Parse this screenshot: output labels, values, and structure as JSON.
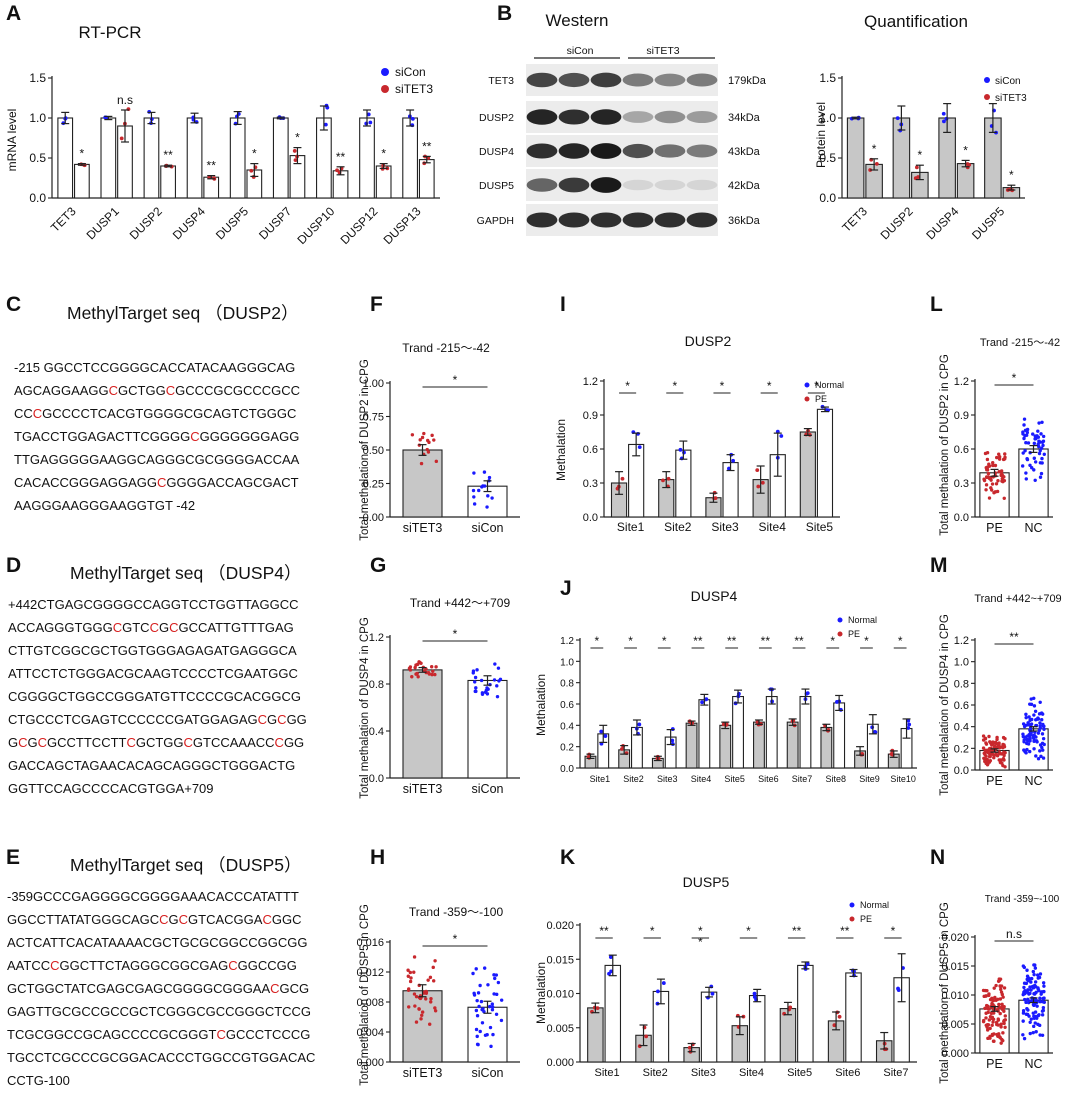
{
  "panel_letters": [
    "A",
    "B",
    "C",
    "D",
    "E",
    "F",
    "G",
    "H",
    "I",
    "J",
    "K",
    "L",
    "M",
    "N"
  ],
  "blot": {
    "title": "Western",
    "group_labels": [
      "siCon",
      "siTET3"
    ],
    "rows": [
      {
        "protein": "TET3",
        "size": "179kDa",
        "con": [
          0.75,
          0.7,
          0.78
        ],
        "kd": [
          0.5,
          0.45,
          0.5
        ]
      },
      {
        "protein": "DUSP2",
        "size": "34kDa",
        "con": [
          0.9,
          0.85,
          0.9
        ],
        "kd": [
          0.3,
          0.4,
          0.35
        ]
      },
      {
        "protein": "DUSP4",
        "size": "43kDa",
        "con": [
          0.85,
          0.9,
          0.95
        ],
        "kd": [
          0.7,
          0.55,
          0.5
        ]
      },
      {
        "protein": "DUSP5",
        "size": "42kDa",
        "con": [
          0.6,
          0.8,
          0.95
        ],
        "kd": [
          0.08,
          0.08,
          0.08
        ]
      },
      {
        "protein": "GAPDH",
        "size": "36kDa",
        "con": [
          0.85,
          0.85,
          0.85
        ],
        "kd": [
          0.85,
          0.85,
          0.85
        ]
      }
    ]
  },
  "sequences": [
    {
      "title": "MethylTarget seq （DUSP2）",
      "lines": [
        "-215 GGCCTCCGGGGCACCATACAAGGGCAG",
        "AGCAGGAAGG[C]GCTGG[C]GCCCGCGCCCGCC",
        "CC[C]GCCCCTCACGTGGGGCGCAGTCTGGGC",
        "TGACCTGGAGACTTCGGGG[C]GGGGGGGAGG",
        "TTGAGGGGGAAGGCAGGGCGCGGGGACCAA",
        "CACACCGGGAGGAGG[C]GGGGACCAGCGACT",
        "AAGGGAAGGGAAGGTGT -42"
      ]
    },
    {
      "title": "MethylTarget seq （DUSP4）",
      "lines": [
        "+442CTGAGCGGGGCCAGGTCCTGGTTAGGCC",
        "ACCAGGGTGGG[C]GTC[C]G[C]GCCATTGTTTGAG",
        "CTTGTCGGCGCTGGTGGGAGAGATGAGGGCA",
        "ATTCCTCTGGGACGCAAGTCCCCTCGAATGGC",
        "CGGGGCTGGCCGGGATGTTCCCCGCACGGCG",
        "CTGCCCTCGAGTCCCCCCGATGGAGAG[C]G[C]GG",
        "G[C]G[C]GCCTTCCTT[C]GCTGG[C]GTCCAAACC[C]GG",
        "GACCAGCTAGAACACAGCAGGGCTGGGACTG",
        "GGTTCCAGCCCCACGTGGA+709"
      ]
    },
    {
      "title": "MethylTarget seq （DUSP5）",
      "lines": [
        "-359GCCCGAGGGGCGGGGAAACACCCATATTT",
        "GGCCTTATATGGGCAGC[C]G[C]GTCACGGA[C]GGC",
        "ACTCATTCACATAAAACGCTGCGCGGCCGGCGG",
        "AATCC[C]GGCTTCTAGGGCGGCGAG[C]GGCCGG",
        "GCTGGCTATCGAGCGAGCGGGGCGGGAA[C]GCG",
        "GAGTTGCGCCGCCGCTCGGGCGCCGGGCTCCG",
        "TCGCGGCCGCAGCCCCGCGGGT[C]GCCCTCCCG",
        "TGCCTCGCCCGCGGACACCCTGGCCGTGGACAC",
        "CCTG-100"
      ]
    }
  ],
  "colors": {
    "con": "#1a1aff",
    "kd": "#c8282d",
    "bar_gray": "#c7c7c7",
    "bar_white": "#ffffff",
    "seq_red": "#d61f1f"
  },
  "chart_data": [
    {
      "panel": "A",
      "type": "bar",
      "title": "RT-PCR",
      "ylabel": "mRNA level",
      "ylim": [
        0,
        1.5
      ],
      "yticks": [
        "0.0",
        "0.5",
        "1.0",
        "1.5"
      ],
      "categories": [
        "TET3",
        "DUSP1",
        "DUSP2",
        "DUSP4",
        "DUSP5",
        "DUSP7",
        "DUSP10",
        "DUSP12",
        "DUSP13"
      ],
      "series": [
        {
          "name": "siCon",
          "values": [
            1.0,
            1.0,
            1.0,
            1.0,
            1.0,
            1.0,
            1.0,
            1.0,
            1.0
          ]
        },
        {
          "name": "siTET3",
          "values": [
            0.42,
            0.9,
            0.4,
            0.26,
            0.35,
            0.53,
            0.34,
            0.4,
            0.48
          ]
        }
      ],
      "errors": [
        [
          0.07,
          0.02,
          0.07,
          0.06,
          0.08,
          0.01,
          0.15,
          0.1,
          0.1
        ],
        [
          0.01,
          0.2,
          0.01,
          0.02,
          0.08,
          0.1,
          0.05,
          0.03,
          0.04
        ]
      ],
      "sig": [
        "*",
        "n.s",
        "**",
        "**",
        "*",
        "*",
        "**",
        "*",
        "**"
      ],
      "legend": "top-right"
    },
    {
      "panel": "B",
      "type": "bar",
      "title": "Quantification",
      "ylabel": "Protein level",
      "ylim": [
        0,
        1.5
      ],
      "yticks": [
        "0.0",
        "0.5",
        "1.0",
        "1.5"
      ],
      "categories": [
        "TET3",
        "DUSP2",
        "DUSP4",
        "DUSP5"
      ],
      "series": [
        {
          "name": "siCon",
          "values": [
            1.0,
            1.0,
            1.0,
            1.0
          ]
        },
        {
          "name": "siTET3",
          "values": [
            0.42,
            0.32,
            0.43,
            0.13
          ]
        }
      ],
      "errors": [
        [
          0.01,
          0.15,
          0.18,
          0.18
        ],
        [
          0.07,
          0.09,
          0.04,
          0.03
        ]
      ],
      "sig": [
        "*",
        "*",
        "*",
        "*"
      ],
      "legend": "top-right"
    },
    {
      "panel": "F",
      "type": "bar",
      "subtitle": "Trand  -215～-42",
      "ylabel": "Total methalation of  DUSP2 in CPG",
      "ylim": [
        0,
        1.0
      ],
      "yticks": [
        "0.00",
        "0.25",
        "0.50",
        "0.75",
        "1.00"
      ],
      "categories": [
        "siTET3",
        "siCon"
      ],
      "values": [
        0.5,
        0.23
      ],
      "errors": [
        0.04,
        0.04
      ],
      "sig": "*"
    },
    {
      "panel": "G",
      "type": "bar",
      "subtitle": "Trand  +442～+709",
      "ylabel": "Total methalation of  DUSP4 in CPG",
      "ylim": [
        0,
        1.2
      ],
      "yticks": [
        "0.0",
        "0.4",
        "0.8",
        "1.2"
      ],
      "categories": [
        "siTET3",
        "siCon"
      ],
      "values": [
        0.92,
        0.83
      ],
      "errors": [
        0.02,
        0.04
      ],
      "sig": "*"
    },
    {
      "panel": "H",
      "type": "bar",
      "subtitle": "Trand  -359～-100",
      "ylabel": "Total methalation of  DUSP5 in CPG",
      "ylim": [
        0,
        0.016
      ],
      "yticks": [
        "0.000",
        "0.004",
        "0.008",
        "0.012",
        "0.016"
      ],
      "categories": [
        "siTET3",
        "siCon"
      ],
      "values": [
        0.0095,
        0.0073
      ],
      "errors": [
        0.0008,
        0.0008
      ],
      "sig": "*"
    },
    {
      "panel": "I",
      "type": "bar",
      "title": "DUSP2",
      "ylabel": "Methalation",
      "ylim": [
        0,
        1.2
      ],
      "yticks": [
        "0.0",
        "0.3",
        "0.6",
        "0.9",
        "1.2"
      ],
      "categories": [
        "Site1",
        "Site2",
        "Site3",
        "Site4",
        "Site5"
      ],
      "series": [
        {
          "name": "PE",
          "values": [
            0.3,
            0.33,
            0.17,
            0.33,
            0.75
          ]
        },
        {
          "name": "Normal",
          "values": [
            0.64,
            0.59,
            0.48,
            0.55,
            0.95
          ]
        }
      ],
      "errors": [
        [
          0.1,
          0.07,
          0.04,
          0.12,
          0.03
        ],
        [
          0.1,
          0.08,
          0.07,
          0.19,
          0.02
        ]
      ],
      "sig": [
        "*",
        "*",
        "*",
        "*",
        "*"
      ],
      "legend": "top-right"
    },
    {
      "panel": "J",
      "type": "bar",
      "title": "DUSP4",
      "ylabel": "Methalation",
      "ylim": [
        0,
        1.2
      ],
      "yticks": [
        "0.0",
        "0.2",
        "0.4",
        "0.6",
        "0.8",
        "1.0",
        "1.2"
      ],
      "categories": [
        "Site1",
        "Site2",
        "Site3",
        "Site4",
        "Site5",
        "Site6",
        "Site7",
        "Site8",
        "Site9",
        "Site10"
      ],
      "series": [
        {
          "name": "PE",
          "values": [
            0.11,
            0.17,
            0.09,
            0.42,
            0.4,
            0.43,
            0.43,
            0.38,
            0.16,
            0.13
          ]
        },
        {
          "name": "Normal",
          "values": [
            0.32,
            0.38,
            0.29,
            0.64,
            0.67,
            0.67,
            0.67,
            0.61,
            0.41,
            0.37
          ]
        }
      ],
      "errors": [
        [
          0.02,
          0.04,
          0.02,
          0.02,
          0.03,
          0.02,
          0.03,
          0.03,
          0.04,
          0.03
        ],
        [
          0.08,
          0.07,
          0.07,
          0.05,
          0.06,
          0.07,
          0.07,
          0.07,
          0.09,
          0.09
        ]
      ],
      "sig": [
        "*",
        "*",
        "*",
        "**",
        "**",
        "**",
        "**",
        "*",
        "*",
        "*"
      ],
      "legend": "top-right"
    },
    {
      "panel": "K",
      "type": "bar",
      "title": "DUSP5",
      "ylabel": "Methalation",
      "ylim": [
        0,
        0.02
      ],
      "yticks": [
        "0.000",
        "0.005",
        "0.010",
        "0.015",
        "0.020"
      ],
      "categories": [
        "Site1",
        "Site2",
        "Site3",
        "Site4",
        "Site5",
        "Site6",
        "Site7"
      ],
      "series": [
        {
          "name": "PE",
          "values": [
            0.0079,
            0.0039,
            0.0021,
            0.0053,
            0.0078,
            0.006,
            0.0031
          ]
        },
        {
          "name": "Normal",
          "values": [
            0.0141,
            0.0103,
            0.0102,
            0.0097,
            0.0141,
            0.013,
            0.0123
          ]
        }
      ],
      "errors": [
        [
          0.0007,
          0.0015,
          0.0006,
          0.0013,
          0.0009,
          0.0013,
          0.0012
        ],
        [
          0.0015,
          0.0018,
          0.0007,
          0.0009,
          0.0005,
          0.0005,
          0.0035
        ]
      ],
      "sig": [
        "**",
        "*",
        "*\n*",
        "*",
        "**",
        "**",
        "*"
      ],
      "legend": "top-right"
    },
    {
      "panel": "L",
      "type": "bar",
      "subtitle": "Trand  -215～-42",
      "ylabel": "Total methalation of  DUSP2 in CPG",
      "ylim": [
        0,
        1.2
      ],
      "yticks": [
        "0.0",
        "0.3",
        "0.6",
        "0.9",
        "1.2"
      ],
      "categories": [
        "PE",
        "NC"
      ],
      "values": [
        0.39,
        0.6
      ],
      "errors": [
        0.03,
        0.03
      ],
      "sig": "*"
    },
    {
      "panel": "M",
      "type": "bar",
      "subtitle": "Trand  +442~+709",
      "ylabel": "Total methalation of  DUSP4 in CPG",
      "ylim": [
        0,
        1.2
      ],
      "yticks": [
        "0.0",
        "0.2",
        "0.4",
        "0.6",
        "0.8",
        "1.0",
        "1.2"
      ],
      "categories": [
        "PE",
        "NC"
      ],
      "values": [
        0.18,
        0.38
      ],
      "errors": [
        0.015,
        0.02
      ],
      "sig": "**"
    },
    {
      "panel": "N",
      "type": "bar",
      "subtitle": "Trand  -359~-100",
      "ylabel": "Total methalation of  DUSP5 in CPG",
      "ylim": [
        0,
        0.02
      ],
      "yticks": [
        "0.000",
        "0.005",
        "0.010",
        "0.015",
        "0.020"
      ],
      "categories": [
        "PE",
        "NC"
      ],
      "values": [
        0.0076,
        0.0091
      ],
      "errors": [
        0.0004,
        0.0004
      ],
      "sig": "n.s"
    }
  ]
}
